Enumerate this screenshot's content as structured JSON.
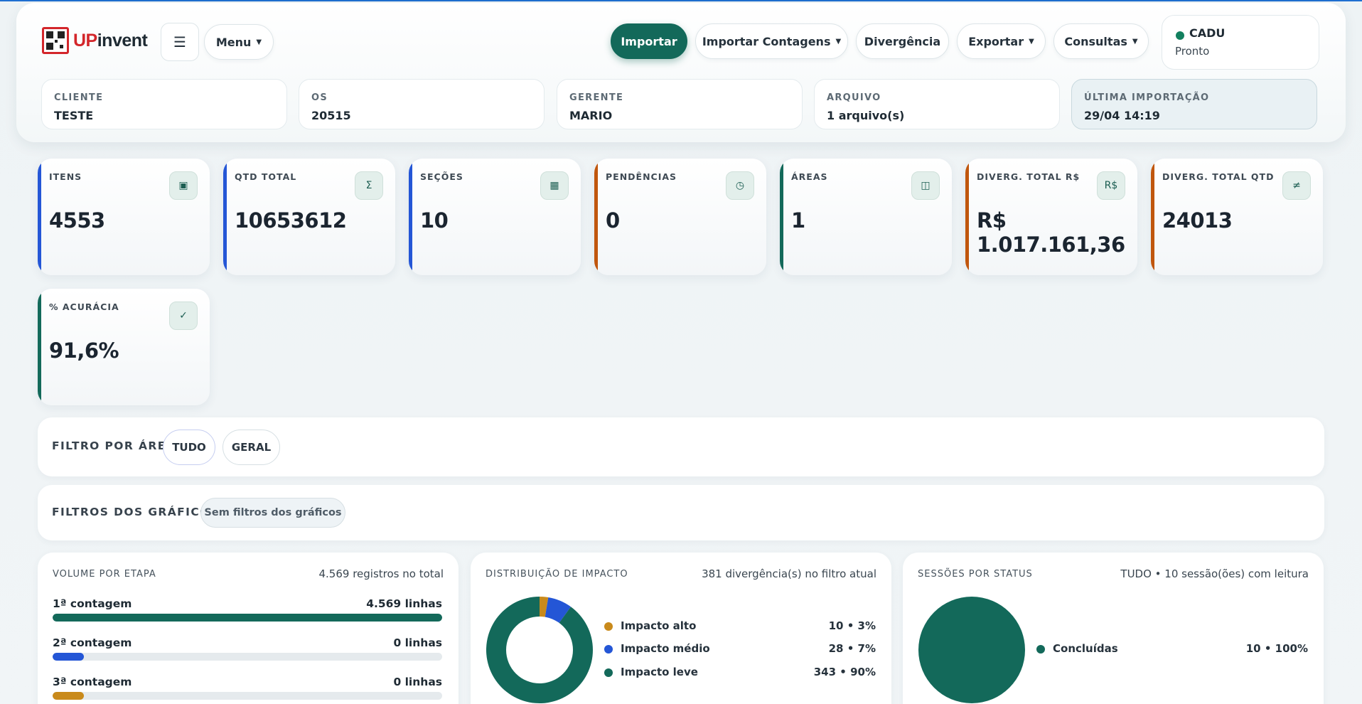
{
  "app": {
    "logo_up": "UP",
    "logo_rest": "invent"
  },
  "header": {
    "hamburger_icon": "☰",
    "menu_label": "Menu",
    "actions": {
      "import_label": "Importar",
      "import_counts_label": "Importar Contagens",
      "divergence_label": "Divergência",
      "export_label": "Exportar",
      "queries_label": "Consultas"
    },
    "user": {
      "name": "CADU",
      "status": "Pronto",
      "status_color": "#13805f"
    },
    "info": [
      {
        "label": "CLIENTE",
        "value": "TESTE"
      },
      {
        "label": "OS",
        "value": "20515"
      },
      {
        "label": "GERENTE",
        "value": "MARIO"
      },
      {
        "label": "ARQUIVO",
        "value": "1 arquivo(s)"
      },
      {
        "label": "ÚLTIMA IMPORTAÇÃO",
        "value": "29/04 14:19"
      }
    ]
  },
  "kpis": [
    {
      "label": "ITENS",
      "value": "4553",
      "icon": "▣",
      "icon_name": "box-icon",
      "accent": "#2456d6"
    },
    {
      "label": "QTD TOTAL",
      "value": "10653612",
      "icon": "Σ",
      "icon_name": "sigma-icon",
      "accent": "#2456d6"
    },
    {
      "label": "SEÇÕES",
      "value": "10",
      "icon": "▦",
      "icon_name": "grid-icon",
      "accent": "#2456d6"
    },
    {
      "label": "PENDÊNCIAS",
      "value": "0",
      "icon": "◷",
      "icon_name": "clock-icon",
      "accent": "#c0560d"
    },
    {
      "label": "ÁREAS",
      "value": "1",
      "icon": "◫",
      "icon_name": "layout-icon",
      "accent": "#13695a"
    },
    {
      "label": "DIVERG. TOTAL R$",
      "value": "R$ 1.017.161,36",
      "icon": "R$",
      "icon_name": "currency-icon",
      "accent": "#c0560d"
    },
    {
      "label": "DIVERG. TOTAL QTD",
      "value": "24013",
      "icon": "≠",
      "icon_name": "not-equal-icon",
      "accent": "#c0560d"
    },
    {
      "label": "% ACURÁCIA",
      "value": "91,6%",
      "icon": "✓",
      "icon_name": "check-icon",
      "accent": "#13695a"
    }
  ],
  "area_filter": {
    "title": "FILTRO POR ÁREA",
    "options": [
      "TUDO",
      "GERAL"
    ],
    "selected": "TUDO"
  },
  "chart_filters": {
    "title": "FILTROS DOS GRÁFICOS",
    "empty_label": "Sem filtros dos gráficos"
  },
  "volume": {
    "title": "VOLUME POR ETAPA",
    "meta": "4.569 registros no total",
    "stages": [
      {
        "name": "1ª contagem",
        "count": "4.569 linhas",
        "fraction": 1.0,
        "color": "#13695a"
      },
      {
        "name": "2ª contagem",
        "count": "0 linhas",
        "fraction": 0.08,
        "color": "#2456d6"
      },
      {
        "name": "3ª contagem",
        "count": "0 linhas",
        "fraction": 0.08,
        "color": "#c98a1b"
      }
    ]
  },
  "impact": {
    "title": "DISTRIBUIÇÃO DE IMPACTO",
    "meta": "381 divergência(s) no filtro atual",
    "legend": [
      {
        "name": "Impacto alto",
        "value": "10 • 3%",
        "color": "#c98a1b"
      },
      {
        "name": "Impacto médio",
        "value": "28 • 7%",
        "color": "#2456d6"
      },
      {
        "name": "Impacto leve",
        "value": "343 • 90%",
        "color": "#13695a"
      }
    ]
  },
  "sessions": {
    "title": "SESSÕES POR STATUS",
    "meta": "TUDO • 10 sessão(ões) com leitura",
    "legend": [
      {
        "name": "Concluídas",
        "value": "10 • 100%",
        "color": "#13695a"
      }
    ]
  },
  "chart_data": [
    {
      "type": "bar",
      "title": "VOLUME POR ETAPA",
      "categories": [
        "1ª contagem",
        "2ª contagem",
        "3ª contagem"
      ],
      "values": [
        4569,
        0,
        0
      ]
    },
    {
      "type": "pie",
      "title": "DISTRIBUIÇÃO DE IMPACTO",
      "categories": [
        "Impacto alto",
        "Impacto médio",
        "Impacto leve"
      ],
      "values": [
        10,
        28,
        343
      ],
      "colors": [
        "#c98a1b",
        "#2456d6",
        "#13695a"
      ]
    },
    {
      "type": "pie",
      "title": "SESSÕES POR STATUS",
      "categories": [
        "Concluídas"
      ],
      "values": [
        10
      ],
      "colors": [
        "#13695a"
      ]
    }
  ]
}
